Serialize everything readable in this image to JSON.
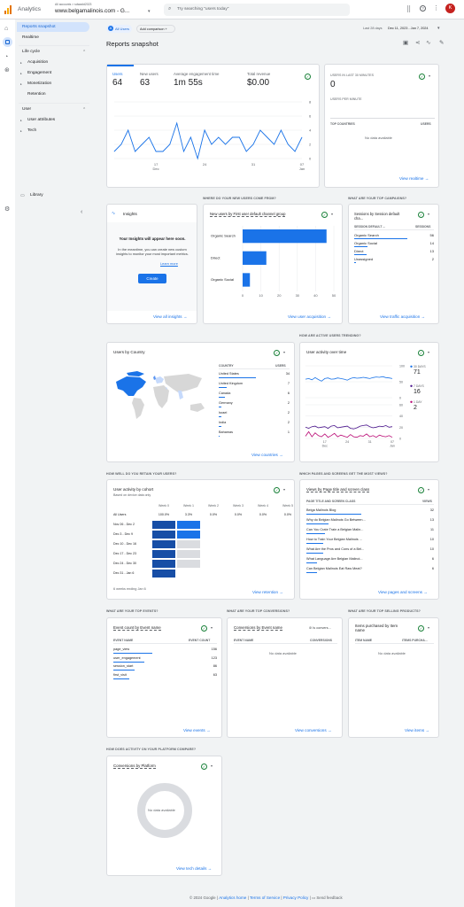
{
  "app": {
    "name": "Analytics",
    "breadcrumb": "All accounts > sdwadd2023",
    "property": "www.belgamalinois.com - G...",
    "search_placeholder": "Try searching \"users today\"",
    "avatar_letter": "K"
  },
  "sidenav": {
    "items": [
      {
        "label": "Reports snapshot",
        "active": true
      },
      {
        "label": "Realtime"
      }
    ],
    "lifecycle_title": "Life cycle",
    "lifecycle": [
      "Acquisition",
      "Engagement",
      "Monetization",
      "Retention"
    ],
    "user_title": "User",
    "user_items": [
      "User attributes",
      "Tech"
    ],
    "library": "Library"
  },
  "header": {
    "chip_all_users": "All Users",
    "add_comparison": "Add comparison +",
    "date_label": "Last 28 days",
    "date_range": "Dec 11, 2023 - Jan 7, 2024",
    "title": "Reports snapshot"
  },
  "overview": {
    "metrics": [
      {
        "label": "Users",
        "value": "64"
      },
      {
        "label": "New users",
        "value": "63"
      },
      {
        "label": "Average engagement time",
        "value": "1m 55s"
      },
      {
        "label": "Total revenue",
        "value": "$0.00"
      }
    ],
    "y_ticks": [
      "8",
      "6",
      "4",
      "2",
      "0"
    ],
    "x_ticks": [
      "17\nDec",
      "24",
      "31",
      "07\nJan"
    ]
  },
  "chart_data": [
    {
      "type": "line",
      "title": "",
      "x": [
        "Dec 11",
        "Dec 12",
        "Dec 13",
        "Dec 14",
        "Dec 15",
        "Dec 16",
        "Dec 17",
        "Dec 18",
        "Dec 19",
        "Dec 20",
        "Dec 21",
        "Dec 22",
        "Dec 23",
        "Dec 24",
        "Dec 25",
        "Dec 26",
        "Dec 27",
        "Dec 28",
        "Dec 29",
        "Dec 30",
        "Dec 31",
        "Jan 1",
        "Jan 2",
        "Jan 3",
        "Jan 4",
        "Jan 5",
        "Jan 6",
        "Jan 7"
      ],
      "series": [
        {
          "values": [
            1,
            2,
            4,
            1,
            2,
            3,
            1,
            1,
            2,
            5,
            1,
            3,
            0,
            4,
            2,
            3,
            2,
            3,
            3,
            1,
            2,
            4,
            3,
            2,
            4,
            2,
            1,
            3
          ]
        }
      ],
      "ylim": [
        0,
        8
      ]
    },
    {
      "type": "bar",
      "title": "New users by First user default channel group",
      "categories": [
        "Organic Search",
        "Direct",
        "Organic Social"
      ],
      "values": [
        46,
        13,
        4
      ],
      "xlim": [
        0,
        50
      ],
      "x_ticks": [
        0,
        10,
        20,
        30,
        40,
        50
      ]
    },
    {
      "type": "line",
      "title": "User activity over time",
      "series": [
        {
          "name": "30 DAYS",
          "value": 71
        },
        {
          "name": "7 DAYS",
          "value": 16
        },
        {
          "name": "1 DAY",
          "value": 2
        }
      ]
    }
  ],
  "realtime": {
    "title": "USERS IN LAST 30 MINUTES",
    "value": "0",
    "per_minute": "USERS PER MINUTE",
    "col1": "TOP COUNTRIES",
    "col2": "USERS",
    "empty": "No data available",
    "link": "View realtime →"
  },
  "sections": {
    "new_users": "WHERE DO YOUR NEW USERS COME FROM?",
    "campaigns": "WHAT ARE YOUR TOP CAMPAIGNS?",
    "active_users": "HOW ARE ACTIVE USERS TRENDING?",
    "retain": "HOW WELL DO YOU RETAIN YOUR USERS?",
    "pages": "WHICH PAGES AND SCREENS GET THE MOST VIEWS?",
    "events": "WHAT ARE YOUR TOP EVENTS?",
    "conversions": "WHAT ARE YOUR TOP CONVERSIONS?",
    "products": "WHAT ARE YOUR TOP SELLING PRODUCTS?",
    "platform": "HOW DOES ACTIVITY ON YOUR PLATFORM COMPARE?"
  },
  "insights": {
    "title": "Insights",
    "heading": "Your Insights will appear here soon.",
    "body": "In the meantime, you can create new custom insights to monitor your most important metrics.",
    "learn_more": "Learn more",
    "button": "Create",
    "link": "View all insights →"
  },
  "channel_card": {
    "title": "New users by First user default channel group",
    "link": "View user acquisition →"
  },
  "campaigns": {
    "title": "Sessions by Session default cha...",
    "col1": "SESSION DEFAULT ...",
    "col2": "SESSIONS",
    "rows": [
      {
        "name": "Organic Search",
        "value": "56"
      },
      {
        "name": "Organic Social",
        "value": "14"
      },
      {
        "name": "Direct",
        "value": "13"
      },
      {
        "name": "Unassigned",
        "value": "2"
      }
    ],
    "link": "View traffic acquisition →"
  },
  "country": {
    "title": "Users by Country",
    "col1": "COUNTRY",
    "col2": "USERS",
    "rows": [
      {
        "name": "United States",
        "value": "34"
      },
      {
        "name": "United Kingdom",
        "value": "7"
      },
      {
        "name": "Canada",
        "value": "6"
      },
      {
        "name": "Germany",
        "value": "2"
      },
      {
        "name": "Israel",
        "value": "2"
      },
      {
        "name": "India",
        "value": "2"
      },
      {
        "name": "Bahamas",
        "value": "1"
      }
    ],
    "link": "View countries →"
  },
  "activity": {
    "title": "User activity over time",
    "legend": [
      {
        "label": "30 DAYS",
        "value": "71",
        "color": "#1a73e8"
      },
      {
        "label": "7 DAYS",
        "value": "16",
        "color": "#4a148c"
      },
      {
        "label": "1 DAY",
        "value": "2",
        "color": "#b80672"
      }
    ],
    "y_ticks_top": [
      "100",
      "50",
      "0"
    ],
    "y_ticks_bottom": [
      "60",
      "40",
      "20",
      "0"
    ]
  },
  "cohort": {
    "title": "User activity by cohort",
    "subtitle": "Based on device data only",
    "cols": [
      "Week 0",
      "Week 1",
      "Week 2",
      "Week 3",
      "Week 4",
      "Week 5"
    ],
    "all_users_label": "All Users",
    "all_users_values": [
      "100.0%",
      "3.3%",
      "0.0%",
      "0.0%",
      "0.0%",
      "0.0%"
    ],
    "rows": [
      "Nov 26 - Dec 2",
      "Dec 3 - Dec 9",
      "Dec 10 - Dec 16",
      "Dec 17 - Dec 23",
      "Dec 24 - Dec 30",
      "Dec 31 - Jan 6"
    ],
    "footer": "6 weeks ending Jan 6",
    "link": "View retention →"
  },
  "pages": {
    "title": "Views by Page title and screen class",
    "col1": "PAGE TITLE AND SCREEN CLASS",
    "col2": "VIEWS",
    "rows": [
      {
        "name": "Belga Malinois Blog",
        "value": "32"
      },
      {
        "name": "Why do Belgian Malinois Go Between...",
        "value": "13"
      },
      {
        "name": "Can You Crate Train a Belgian Malin...",
        "value": "11"
      },
      {
        "name": "How to Train Your Belgian Malinois ...",
        "value": "10"
      },
      {
        "name": "What Are the Pros and Cons of a Bel...",
        "value": "10"
      },
      {
        "name": "What Language Are Belgian Malinoi...",
        "value": "6"
      },
      {
        "name": "Can Belgian Malinois Eat Raw Meat?",
        "value": "6"
      }
    ],
    "link": "View pages and screens →"
  },
  "events": {
    "title": "Event count by Event name",
    "col1": "EVENT NAME",
    "col2": "EVENT COUNT",
    "rows": [
      {
        "name": "page_view",
        "value": "156"
      },
      {
        "name": "user_engagement",
        "value": "123"
      },
      {
        "name": "session_start",
        "value": "86"
      },
      {
        "name": "first_visit",
        "value": "63"
      }
    ],
    "link": "View events →"
  },
  "conversions": {
    "title": "Conversions by Event name",
    "filter": "⊘ Is convers...",
    "col1": "EVENT NAME",
    "col2": "CONVERSIONS",
    "empty": "No data available",
    "link": "View conversions →"
  },
  "products": {
    "title": "Items purchased by Item name",
    "col1": "ITEM NAME",
    "col2": "ITEMS PURCHA...",
    "empty": "No data available",
    "link": "View items →"
  },
  "platform": {
    "title": "Conversions by Platform",
    "empty": "No data available",
    "link": "View tech details →"
  },
  "footer": {
    "copyright": "© 2024 Google",
    "links": [
      "Analytics home",
      "Terms of Service",
      "Privacy Policy"
    ],
    "feedback": "Send feedback"
  }
}
